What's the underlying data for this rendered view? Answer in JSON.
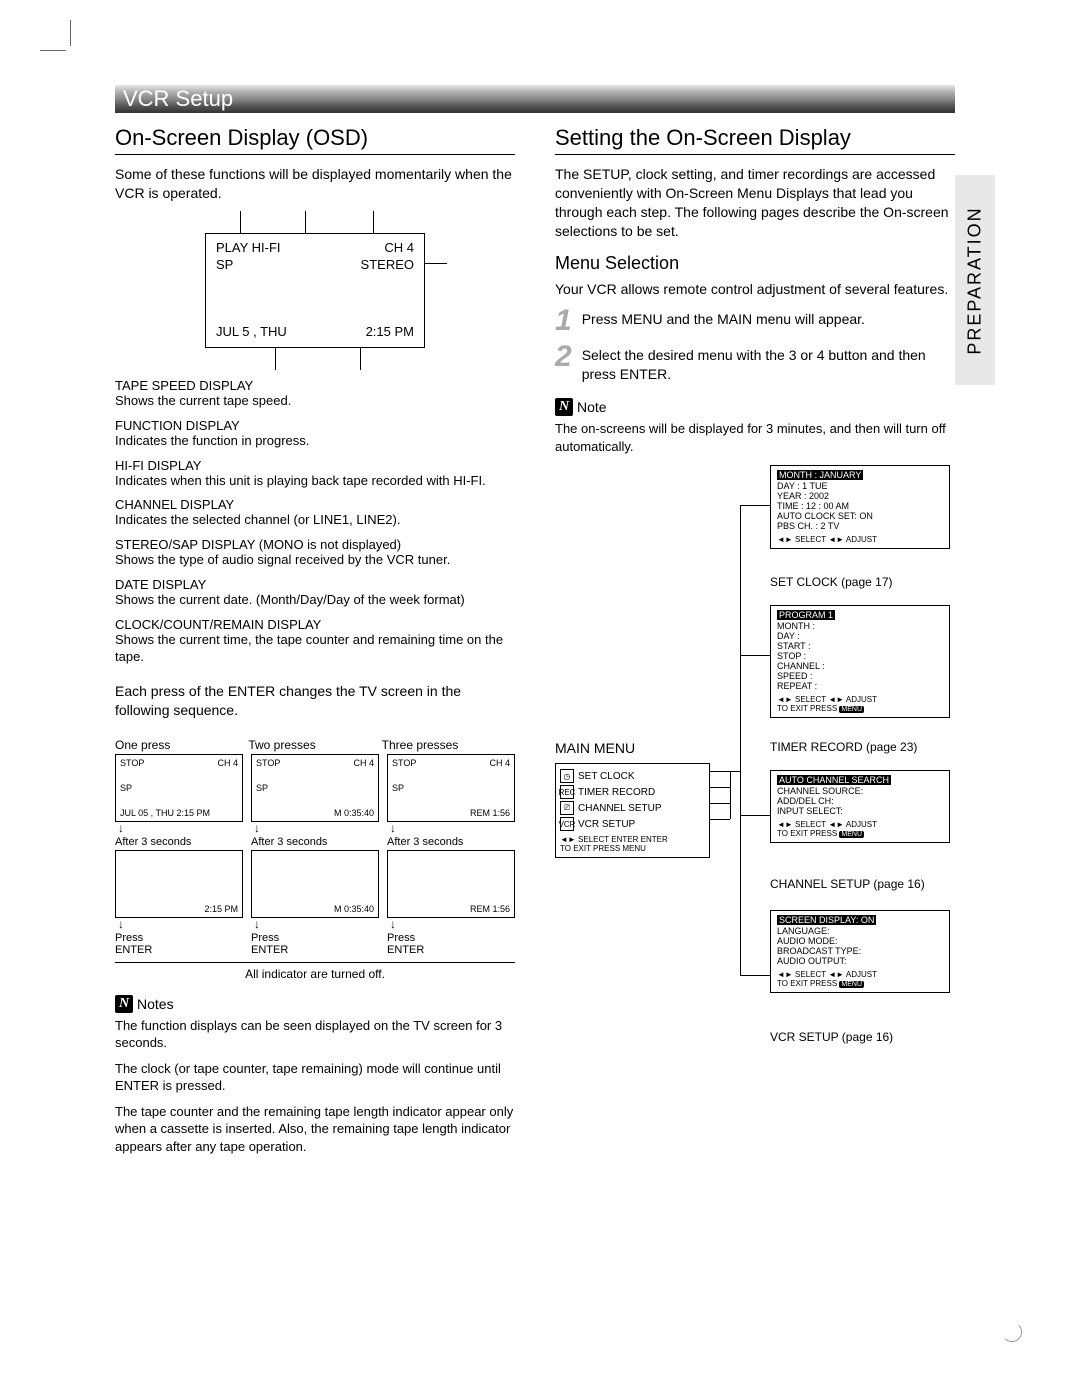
{
  "topbar_title": "VCR Setup",
  "vertical_tab": "PREPARATION",
  "left": {
    "h2": "On-Screen Display (OSD)",
    "intro": "Some of these functions will be displayed momentarily when the VCR is operated.",
    "osd": {
      "play": "PLAY HI-FI",
      "ch": "CH   4",
      "sp": "SP",
      "stereo": "STEREO",
      "date": "JUL   5 , THU",
      "time": "2:15 PM"
    },
    "defs": [
      {
        "t": "TAPE SPEED DISPLAY",
        "b": "Shows the current tape speed."
      },
      {
        "t": "FUNCTION DISPLAY",
        "b": "Indicates the function in progress."
      },
      {
        "t": "HI-FI DISPLAY",
        "b": "Indicates when this unit is playing back tape recorded with HI-FI."
      },
      {
        "t": "CHANNEL DISPLAY",
        "b": "Indicates the selected channel (or LINE1, LINE2)."
      },
      {
        "t": "STEREO/SAP DISPLAY  (MONO is not displayed)",
        "b": "Shows the type of audio signal received by the VCR tuner."
      },
      {
        "t": "DATE DISPLAY",
        "b": "Shows the current date. (Month/Day/Day of the week format)"
      },
      {
        "t": "CLOCK/COUNT/REMAIN DISPLAY",
        "b": "Shows the current time, the tape counter and remaining time on the tape."
      }
    ],
    "seq_intro": "Each press of the ENTER changes the TV screen in the following sequence.",
    "seq_heads": [
      "One press",
      "Two presses",
      "Three presses"
    ],
    "mini": {
      "stop": "STOP",
      "ch": "CH   4",
      "sp": "SP",
      "c1b": "JUL  05 , THU      2:15 PM",
      "c2b": "M 0:35:40",
      "c3b": "REM 1:56"
    },
    "after3": "After 3 seconds",
    "mini2": {
      "c1": "2:15 PM",
      "c2": "M 0:35:40",
      "c3": "REM 1:56"
    },
    "press_enter": "Press\nENTER",
    "seq_foot": "All indicator are turned off.",
    "notes_title": "Notes",
    "notes": [
      "The function displays can be seen displayed on the TV screen for 3 seconds.",
      "The clock (or tape counter, tape remaining) mode will continue until ENTER is pressed.",
      "The tape counter and the remaining tape length indicator appear only when a cassette is inserted. Also, the remaining tape length indicator appears after any tape operation."
    ]
  },
  "right": {
    "h2": "Setting the On-Screen Display",
    "intro": "The SETUP, clock setting, and timer recordings are accessed conveniently with On-Screen Menu Displays that lead you through each step. The following pages describe the On-screen selections to be set.",
    "menu_h3": "Menu Selection",
    "menu_p": "Your VCR allows remote control adjustment of several features.",
    "step1": "Press MENU and the MAIN menu will appear.",
    "step2": "Select the desired menu with the   3  or  4  button and then press ENTER.",
    "note_title": "Note",
    "note_body": "The on-screens will be displayed for 3 minutes, and then will turn off automatically.",
    "main_menu_label": "MAIN MENU",
    "main_items": [
      "SET  CLOCK",
      "TIMER RECORD",
      "CHANNEL  SETUP",
      "VCR SETUP"
    ],
    "main_foot": "SELECT  ENTER  ENTER\nTO  EXIT   PRESS MENU",
    "boxes": {
      "clock": {
        "fields": [
          "MONTH :   JANUARY",
          "DAY       :   1   TUE",
          "YEAR     :   2002",
          "TIME      :   12 : 00  AM",
          "AUTO CLOCK SET: ON",
          "PBS CH.  :   2  TV"
        ],
        "foot": "SELECT   ADJUST",
        "cap": "SET CLOCK (page 17)"
      },
      "timer": {
        "fields": [
          "PROGRAM  1",
          "MONTH        :",
          "DAY              :",
          "START          :",
          "STOP            :",
          "CHANNEL     :",
          "SPEED          :",
          "REPEAT        :"
        ],
        "foot": "SELECT   ADJUST\nTO  EXIT   PRESS MENU",
        "cap": "TIMER RECORD (page 23)"
      },
      "channel": {
        "fields": [
          "AUTO  CHANNEL  SEARCH",
          "CHANNEL  SOURCE:",
          "ADD/DEL CH:",
          "INPUT SELECT:"
        ],
        "foot": "SELECT   ADJUST\nTO  EXIT   PRESS MENU",
        "cap": "CHANNEL SETUP (page 16)"
      },
      "vcr": {
        "fields": [
          "SCREEN  DISPLAY:          ON",
          "LANGUAGE:",
          "AUDIO MODE:",
          "BROADCAST TYPE:",
          "AUDIO OUTPUT:"
        ],
        "foot": "SELECT   ADJUST\nTO  EXIT   PRESS MENU",
        "cap": "VCR SETUP (page 16)"
      }
    }
  }
}
